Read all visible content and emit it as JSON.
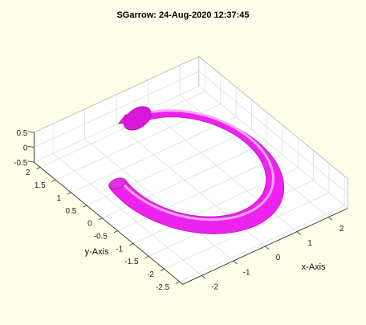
{
  "figure": {
    "title": "SGarrow: 24-Aug-2020 12:37:45",
    "background": "#fdfde8"
  },
  "chart_data": {
    "type": "surface-3d",
    "title": "SGarrow: 24-Aug-2020 12:37:45",
    "xlabel": "x-Axis",
    "ylabel": "y-Axis",
    "zlabel": "",
    "xlim": [
      -2.6,
      2.6
    ],
    "ylim": [
      -2.6,
      2.2
    ],
    "zlim": [
      -0.5,
      0.5
    ],
    "grid": true,
    "x_ticks": [
      "-2",
      "-1",
      "0",
      "1",
      "2"
    ],
    "x_tick_values": [
      -2,
      -1,
      0,
      1,
      2
    ],
    "y_ticks": [
      "2",
      "1.5",
      "1",
      "0.5",
      "0",
      "-0.5",
      "-1",
      "-1.5",
      "-2",
      "-2.5"
    ],
    "y_tick_values": [
      2,
      1.5,
      1,
      0.5,
      0,
      -0.5,
      -1,
      -1.5,
      -2,
      -2.5
    ],
    "z_ticks": [
      "0.5",
      "0",
      "-0.5"
    ],
    "z_tick_values": [
      0.5,
      0,
      -0.5
    ],
    "series": [
      {
        "shape": "curved tube with cone arrowhead",
        "color": "#ee22ee",
        "center": [
          0,
          -0.2
        ],
        "radius": 1.9,
        "tube_radius": 0.2,
        "start_angle_deg": 165,
        "end_angle_deg": 445,
        "head_length": 0.55,
        "head_radius": 0.42
      }
    ]
  }
}
